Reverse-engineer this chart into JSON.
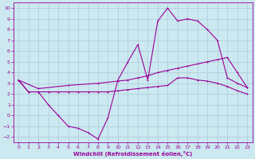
{
  "xlabel": "Windchill (Refroidissement éolien,°C)",
  "background_color": "#cce8f0",
  "grid_color": "#aaccd8",
  "line_color": "#990099",
  "xlim": [
    -0.5,
    23.5
  ],
  "ylim": [
    -2.5,
    10.5
  ],
  "xticks": [
    0,
    1,
    2,
    3,
    4,
    5,
    6,
    7,
    8,
    9,
    10,
    11,
    12,
    13,
    14,
    15,
    16,
    17,
    18,
    19,
    20,
    21,
    22,
    23
  ],
  "yticks": [
    -2,
    -1,
    0,
    1,
    2,
    3,
    4,
    5,
    6,
    7,
    8,
    9,
    10
  ],
  "line1_x": [
    0,
    1,
    2,
    3,
    4,
    5,
    6,
    7,
    8,
    9,
    10,
    11,
    12,
    13,
    14,
    15,
    16,
    17,
    18,
    19,
    20,
    21,
    22,
    23
  ],
  "line1_y": [
    3.3,
    2.2,
    2.2,
    1.0,
    0.0,
    -1.0,
    -1.2,
    -1.6,
    -2.2,
    -0.2,
    3.3,
    5.0,
    6.6,
    3.3,
    8.8,
    10.0,
    8.8,
    9.0,
    8.8,
    8.0,
    7.0,
    3.5,
    3.0,
    2.6
  ],
  "line2_x": [
    0,
    2,
    5,
    8,
    10,
    11,
    12,
    13,
    14,
    15,
    16,
    17,
    18,
    19,
    20,
    21,
    22,
    23
  ],
  "line2_y": [
    3.3,
    2.5,
    2.8,
    3.0,
    3.2,
    3.3,
    3.5,
    3.7,
    4.0,
    4.2,
    4.4,
    4.6,
    4.8,
    5.0,
    5.2,
    5.4,
    4.0,
    2.6
  ],
  "line3_x": [
    0,
    1,
    2,
    3,
    4,
    5,
    6,
    7,
    8,
    9,
    10,
    11,
    12,
    13,
    14,
    15,
    16,
    17,
    18,
    19,
    20,
    21,
    22,
    23
  ],
  "line3_y": [
    3.3,
    2.2,
    2.2,
    2.2,
    2.2,
    2.2,
    2.2,
    2.2,
    2.2,
    2.2,
    2.3,
    2.4,
    2.5,
    2.6,
    2.7,
    2.8,
    3.5,
    3.5,
    3.3,
    3.2,
    3.0,
    2.7,
    2.3,
    2.0
  ]
}
